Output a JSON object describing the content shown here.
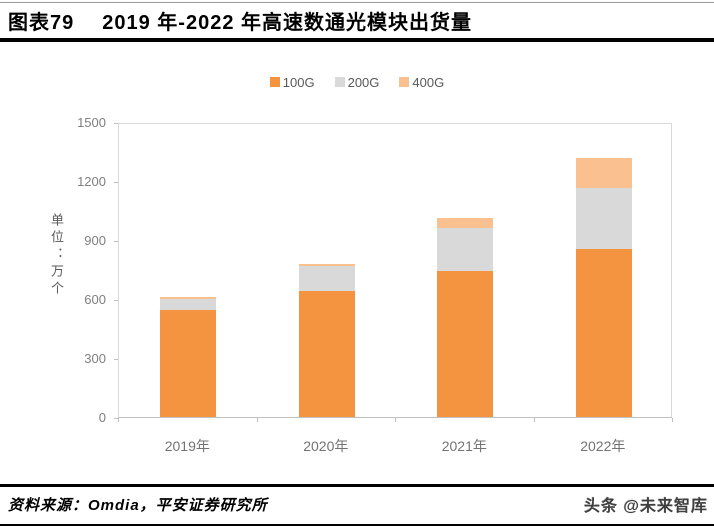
{
  "header": {
    "figure_label": "图表79",
    "title": "2019 年-2022 年高速数通光模块出货量"
  },
  "chart_data": {
    "type": "bar",
    "stacked": true,
    "title": "2019年-2022年高速数通光模块出货量",
    "categories": [
      "2019年",
      "2020年",
      "2021年",
      "2022年"
    ],
    "series": [
      {
        "name": "100G",
        "color": "#F59440",
        "values": [
          545,
          640,
          745,
          855
        ]
      },
      {
        "name": "200G",
        "color": "#D9D9D9",
        "values": [
          55,
          130,
          215,
          310
        ]
      },
      {
        "name": "400G",
        "color": "#FAC090",
        "values": [
          10,
          10,
          50,
          150
        ]
      }
    ],
    "ylabel": "单位：万个",
    "xlabel": "",
    "ylim": [
      0,
      1500
    ],
    "yticks": [
      0,
      300,
      600,
      900,
      1200,
      1500
    ],
    "grid": false,
    "legend_position": "top"
  },
  "footer": {
    "source": "资料来源：Omdia，平安证券研究所",
    "watermark": "头条 @未来智库"
  },
  "colors": {
    "bar_100g": "#F59440",
    "bar_200g": "#D9D9D9",
    "bar_400g": "#FAC090",
    "axis_text": "#7F7F7F",
    "legend_text": "#595959",
    "rule": "#000000"
  }
}
